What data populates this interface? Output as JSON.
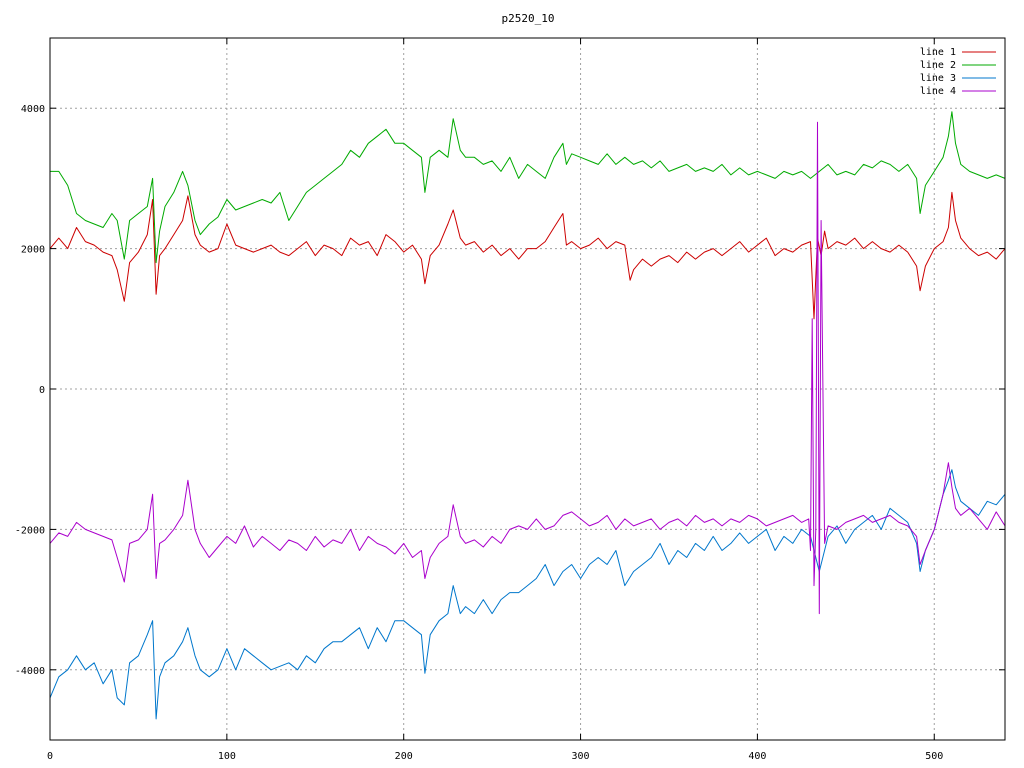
{
  "chart_data": {
    "type": "line",
    "title": "p2520_10",
    "xlabel": "",
    "ylabel": "",
    "xlim": [
      0,
      540
    ],
    "ylim": [
      -5000,
      5000
    ],
    "xticks": [
      0,
      100,
      200,
      300,
      400,
      500
    ],
    "yticks": [
      -4000,
      -2000,
      0,
      2000,
      4000
    ],
    "grid": true,
    "legend_position": "top-right",
    "series": [
      {
        "name": "line 1",
        "color": "#cc0000",
        "x": [
          0,
          5,
          10,
          15,
          20,
          25,
          30,
          35,
          38,
          42,
          45,
          50,
          55,
          58,
          60,
          62,
          65,
          70,
          75,
          78,
          82,
          85,
          90,
          95,
          100,
          105,
          110,
          115,
          120,
          125,
          130,
          135,
          140,
          145,
          150,
          155,
          160,
          165,
          170,
          175,
          180,
          185,
          190,
          195,
          200,
          205,
          210,
          212,
          215,
          220,
          225,
          228,
          232,
          235,
          240,
          245,
          250,
          255,
          260,
          265,
          270,
          275,
          280,
          285,
          290,
          292,
          295,
          300,
          305,
          310,
          315,
          320,
          325,
          328,
          330,
          335,
          340,
          345,
          350,
          355,
          360,
          365,
          370,
          375,
          380,
          385,
          390,
          395,
          400,
          405,
          410,
          415,
          420,
          425,
          430,
          432,
          434,
          436,
          438,
          440,
          445,
          450,
          455,
          460,
          465,
          470,
          475,
          480,
          485,
          490,
          492,
          495,
          500,
          505,
          508,
          510,
          512,
          515,
          520,
          525,
          530,
          535,
          540
        ],
        "y": [
          2000,
          2150,
          2000,
          2300,
          2100,
          2050,
          1950,
          1900,
          1700,
          1250,
          1800,
          1950,
          2200,
          2700,
          1350,
          1900,
          2000,
          2200,
          2400,
          2750,
          2200,
          2050,
          1950,
          2000,
          2350,
          2050,
          2000,
          1950,
          2000,
          2050,
          1950,
          1900,
          2000,
          2100,
          1900,
          2050,
          2000,
          1900,
          2150,
          2050,
          2100,
          1900,
          2200,
          2100,
          1950,
          2050,
          1850,
          1500,
          1900,
          2050,
          2350,
          2550,
          2150,
          2050,
          2100,
          1950,
          2050,
          1900,
          2000,
          1850,
          2000,
          2000,
          2100,
          2300,
          2500,
          2050,
          2100,
          2000,
          2050,
          2150,
          2000,
          2100,
          2050,
          1550,
          1700,
          1850,
          1750,
          1850,
          1900,
          1800,
          1950,
          1850,
          1950,
          2000,
          1900,
          2000,
          2100,
          1950,
          2050,
          2150,
          1900,
          2000,
          1950,
          2050,
          2100,
          1000,
          2150,
          1900,
          2250,
          2000,
          2100,
          2050,
          2150,
          2000,
          2100,
          2000,
          1950,
          2050,
          1950,
          1750,
          1400,
          1750,
          2000,
          2100,
          2300,
          2800,
          2400,
          2150,
          2000,
          1900,
          1950,
          1850,
          2000
        ]
      },
      {
        "name": "line 2",
        "color": "#00aa00",
        "x": [
          0,
          5,
          10,
          15,
          20,
          25,
          30,
          35,
          38,
          42,
          45,
          50,
          55,
          58,
          60,
          62,
          65,
          70,
          75,
          78,
          82,
          85,
          90,
          95,
          100,
          105,
          110,
          115,
          120,
          125,
          130,
          135,
          140,
          145,
          150,
          155,
          160,
          165,
          170,
          175,
          180,
          185,
          190,
          195,
          200,
          205,
          210,
          212,
          215,
          220,
          225,
          228,
          232,
          235,
          240,
          245,
          250,
          255,
          260,
          265,
          270,
          275,
          280,
          285,
          290,
          292,
          295,
          300,
          305,
          310,
          315,
          320,
          325,
          330,
          335,
          340,
          345,
          350,
          355,
          360,
          365,
          370,
          375,
          380,
          385,
          390,
          395,
          400,
          405,
          410,
          415,
          420,
          425,
          430,
          435,
          440,
          445,
          450,
          455,
          460,
          465,
          470,
          475,
          480,
          485,
          490,
          492,
          495,
          500,
          505,
          508,
          510,
          512,
          515,
          520,
          525,
          530,
          535,
          540
        ],
        "y": [
          3100,
          3100,
          2900,
          2500,
          2400,
          2350,
          2300,
          2500,
          2400,
          1850,
          2400,
          2500,
          2600,
          3000,
          1800,
          2250,
          2600,
          2800,
          3100,
          2900,
          2400,
          2200,
          2350,
          2450,
          2700,
          2550,
          2600,
          2650,
          2700,
          2650,
          2800,
          2400,
          2600,
          2800,
          2900,
          3000,
          3100,
          3200,
          3400,
          3300,
          3500,
          3600,
          3700,
          3500,
          3500,
          3400,
          3300,
          2800,
          3300,
          3400,
          3300,
          3850,
          3400,
          3300,
          3300,
          3200,
          3250,
          3100,
          3300,
          3000,
          3200,
          3100,
          3000,
          3300,
          3500,
          3200,
          3350,
          3300,
          3250,
          3200,
          3350,
          3200,
          3300,
          3200,
          3250,
          3150,
          3250,
          3100,
          3150,
          3200,
          3100,
          3150,
          3100,
          3200,
          3050,
          3150,
          3050,
          3100,
          3050,
          3000,
          3100,
          3050,
          3100,
          3000,
          3100,
          3200,
          3050,
          3100,
          3050,
          3200,
          3150,
          3250,
          3200,
          3100,
          3200,
          3000,
          2500,
          2900,
          3100,
          3300,
          3600,
          3950,
          3500,
          3200,
          3100,
          3050,
          3000,
          3050,
          3000
        ]
      },
      {
        "name": "line 3",
        "color": "#0077cc",
        "x": [
          0,
          5,
          10,
          15,
          20,
          25,
          30,
          35,
          38,
          42,
          45,
          50,
          55,
          58,
          60,
          62,
          65,
          70,
          75,
          78,
          82,
          85,
          90,
          95,
          100,
          105,
          110,
          115,
          120,
          125,
          130,
          135,
          140,
          145,
          150,
          155,
          160,
          165,
          170,
          175,
          180,
          185,
          190,
          195,
          200,
          205,
          210,
          212,
          215,
          220,
          225,
          228,
          232,
          235,
          240,
          245,
          250,
          255,
          260,
          265,
          270,
          275,
          280,
          285,
          290,
          295,
          300,
          305,
          310,
          315,
          320,
          325,
          330,
          335,
          340,
          345,
          350,
          355,
          360,
          365,
          370,
          375,
          380,
          385,
          390,
          395,
          400,
          405,
          410,
          415,
          420,
          425,
          430,
          435,
          440,
          445,
          450,
          455,
          460,
          465,
          470,
          475,
          480,
          485,
          490,
          492,
          495,
          500,
          505,
          508,
          510,
          512,
          515,
          520,
          525,
          530,
          535,
          540
        ],
        "y": [
          -4400,
          -4100,
          -4000,
          -3800,
          -4000,
          -3900,
          -4200,
          -4000,
          -4400,
          -4500,
          -3900,
          -3800,
          -3500,
          -3300,
          -4700,
          -4100,
          -3900,
          -3800,
          -3600,
          -3400,
          -3800,
          -4000,
          -4100,
          -4000,
          -3700,
          -4000,
          -3700,
          -3800,
          -3900,
          -4000,
          -3950,
          -3900,
          -4000,
          -3800,
          -3900,
          -3700,
          -3600,
          -3600,
          -3500,
          -3400,
          -3700,
          -3400,
          -3600,
          -3300,
          -3300,
          -3400,
          -3500,
          -4050,
          -3500,
          -3300,
          -3200,
          -2800,
          -3200,
          -3100,
          -3200,
          -3000,
          -3200,
          -3000,
          -2900,
          -2900,
          -2800,
          -2700,
          -2500,
          -2800,
          -2600,
          -2500,
          -2700,
          -2500,
          -2400,
          -2500,
          -2300,
          -2800,
          -2600,
          -2500,
          -2400,
          -2200,
          -2500,
          -2300,
          -2400,
          -2200,
          -2300,
          -2100,
          -2300,
          -2200,
          -2050,
          -2200,
          -2100,
          -2000,
          -2300,
          -2100,
          -2200,
          -2000,
          -2100,
          -2600,
          -2100,
          -1950,
          -2200,
          -2000,
          -1900,
          -1800,
          -2000,
          -1700,
          -1800,
          -1900,
          -2200,
          -2600,
          -2300,
          -2000,
          -1500,
          -1300,
          -1150,
          -1400,
          -1600,
          -1700,
          -1800,
          -1600,
          -1650,
          -1500
        ]
      },
      {
        "name": "line 4",
        "color": "#aa00cc",
        "x": [
          0,
          5,
          10,
          15,
          20,
          25,
          30,
          35,
          38,
          42,
          45,
          50,
          55,
          58,
          60,
          62,
          65,
          70,
          75,
          78,
          82,
          85,
          90,
          95,
          100,
          105,
          110,
          115,
          120,
          125,
          130,
          135,
          140,
          145,
          150,
          155,
          160,
          165,
          170,
          175,
          180,
          185,
          190,
          195,
          200,
          205,
          210,
          212,
          215,
          220,
          225,
          228,
          232,
          235,
          240,
          245,
          250,
          255,
          260,
          265,
          270,
          275,
          280,
          285,
          290,
          295,
          300,
          305,
          310,
          315,
          320,
          325,
          330,
          335,
          340,
          345,
          350,
          355,
          360,
          365,
          370,
          375,
          380,
          385,
          390,
          395,
          400,
          405,
          410,
          415,
          420,
          425,
          429,
          430,
          431,
          432,
          433,
          434,
          435,
          436,
          438,
          440,
          445,
          450,
          455,
          460,
          465,
          470,
          475,
          480,
          485,
          490,
          492,
          495,
          500,
          505,
          508,
          510,
          512,
          515,
          520,
          525,
          530,
          535,
          540
        ],
        "y": [
          -2200,
          -2050,
          -2100,
          -1900,
          -2000,
          -2050,
          -2100,
          -2150,
          -2400,
          -2750,
          -2200,
          -2150,
          -2000,
          -1500,
          -2700,
          -2200,
          -2150,
          -2000,
          -1800,
          -1300,
          -2000,
          -2200,
          -2400,
          -2250,
          -2100,
          -2200,
          -1950,
          -2250,
          -2100,
          -2200,
          -2300,
          -2150,
          -2200,
          -2300,
          -2100,
          -2250,
          -2150,
          -2200,
          -2000,
          -2300,
          -2100,
          -2200,
          -2250,
          -2350,
          -2200,
          -2400,
          -2300,
          -2700,
          -2400,
          -2200,
          -2100,
          -1650,
          -2100,
          -2200,
          -2150,
          -2250,
          -2100,
          -2200,
          -2000,
          -1950,
          -2000,
          -1850,
          -2000,
          -1950,
          -1800,
          -1750,
          -1850,
          -1950,
          -1900,
          -1800,
          -2000,
          -1850,
          -1950,
          -1900,
          -1850,
          -2000,
          -1900,
          -1850,
          -1950,
          -1800,
          -1900,
          -1850,
          -1950,
          -1850,
          -1900,
          -1800,
          -1850,
          -1950,
          -1900,
          -1850,
          -1800,
          -1900,
          -1850,
          -2300,
          1000,
          -2800,
          -2000,
          3800,
          -3200,
          2400,
          -2200,
          -1950,
          -2000,
          -1900,
          -1850,
          -1800,
          -1900,
          -1850,
          -1800,
          -1900,
          -1950,
          -2100,
          -2500,
          -2300,
          -2000,
          -1500,
          -1050,
          -1400,
          -1700,
          -1800,
          -1700,
          -1850,
          -2000,
          -1750,
          -1950
        ]
      }
    ]
  }
}
